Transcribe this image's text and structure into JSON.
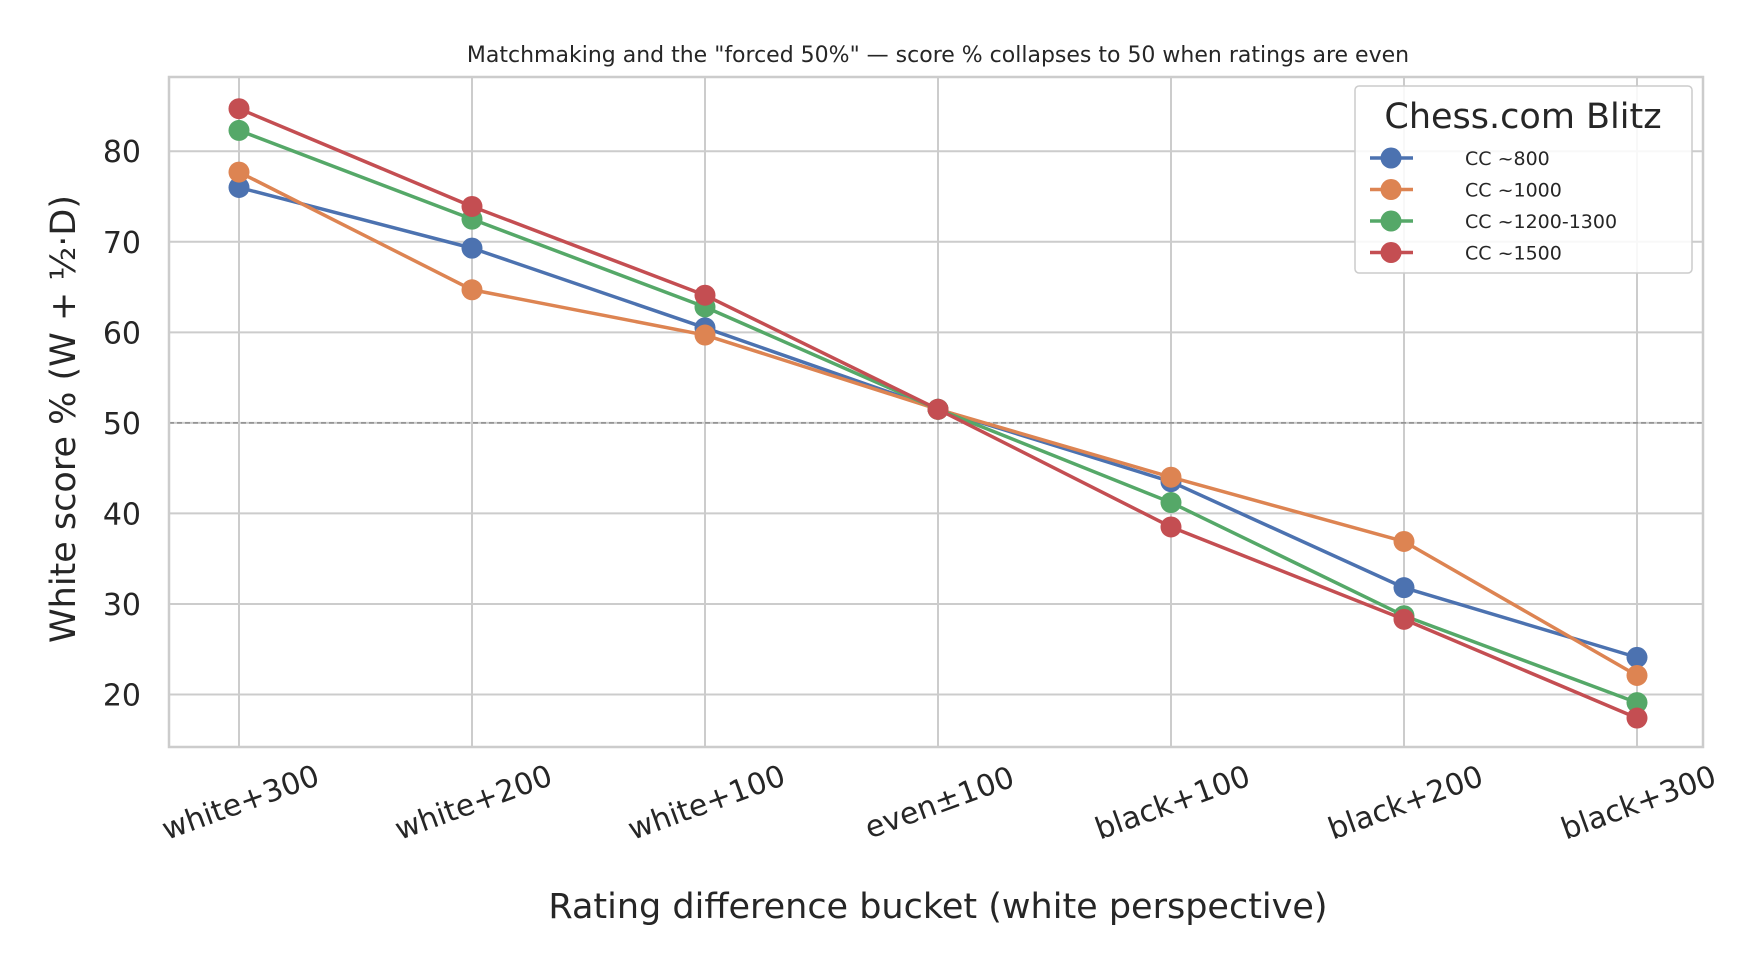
{
  "chart_data": {
    "type": "line",
    "title": "Matchmaking and the \"forced 50%\" — score % collapses to 50 when ratings are even",
    "xlabel": "Rating difference bucket (white perspective)",
    "ylabel": "White score % (W + ½·D)",
    "categories": [
      "white+300",
      "white+200",
      "white+100",
      "even±100",
      "black+100",
      "black+200",
      "black+300"
    ],
    "ylim": [
      14.2,
      88.2
    ],
    "yticks": [
      20,
      30,
      40,
      50,
      60,
      70,
      80
    ],
    "reference_line": 50,
    "grid": true,
    "legend": {
      "title": "Chess.com Blitz",
      "placement": "top-right"
    },
    "series": [
      {
        "name": "CC ~800",
        "color": "#4c72b0",
        "values": [
          76.0,
          69.3,
          60.5,
          51.5,
          43.5,
          31.8,
          24.1
        ]
      },
      {
        "name": "CC ~1000",
        "color": "#dd8452",
        "values": [
          77.7,
          64.7,
          59.7,
          51.5,
          44.0,
          36.9,
          22.1
        ]
      },
      {
        "name": "CC ~1200-1300",
        "color": "#55a868",
        "values": [
          82.3,
          72.5,
          62.8,
          51.5,
          41.2,
          28.7,
          19.1
        ]
      },
      {
        "name": "CC ~1500",
        "color": "#c44e52",
        "values": [
          84.7,
          73.9,
          64.1,
          51.5,
          38.5,
          28.3,
          17.4
        ]
      }
    ]
  }
}
